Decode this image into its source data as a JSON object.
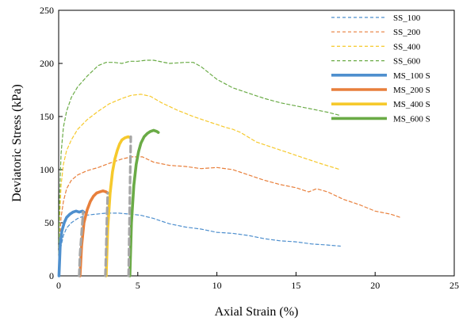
{
  "chart_data": {
    "type": "line",
    "xlabel": "Axial Strain (%)",
    "ylabel": "Deviatoric Stress (kPa)",
    "xlim": [
      0,
      25
    ],
    "ylim": [
      0,
      250
    ],
    "x_ticks": [
      0,
      5,
      10,
      15,
      20,
      25
    ],
    "y_ticks": [
      0,
      50,
      100,
      150,
      200,
      250
    ],
    "legend_position": "top-right",
    "grid": false,
    "series": [
      {
        "name": "SS_100",
        "color": "#4e8fce",
        "style": "dashed",
        "x": [
          0,
          0.05,
          0.15,
          0.3,
          0.5,
          0.8,
          1.2,
          1.7,
          2.3,
          3.0,
          3.8,
          4.6,
          5.2,
          6.0,
          7.0,
          8.0,
          9.0,
          10.0,
          11.0,
          12.0,
          13.0,
          14.0,
          15.0,
          16.0,
          17.0,
          17.8
        ],
        "y": [
          0,
          15,
          28,
          38,
          45,
          50,
          54,
          57,
          58,
          59,
          59,
          58,
          57,
          54,
          49,
          46,
          44,
          41,
          40,
          38,
          35,
          33,
          32,
          30,
          29,
          28
        ]
      },
      {
        "name": "SS_200",
        "color": "#e87f3b",
        "style": "dashed",
        "x": [
          0,
          0.05,
          0.15,
          0.3,
          0.5,
          0.8,
          1.2,
          1.8,
          2.5,
          3.2,
          4.0,
          4.6,
          5.3,
          6.0,
          7.0,
          8.0,
          9.0,
          10.0,
          11.0,
          12.0,
          13.0,
          14.0,
          15.0,
          15.8,
          16.3,
          17.0,
          18.0,
          19.0,
          20.0,
          21.0,
          21.6
        ],
        "y": [
          0,
          30,
          55,
          70,
          82,
          90,
          95,
          99,
          102,
          106,
          110,
          112,
          112,
          107,
          104,
          103,
          101,
          102,
          100,
          95,
          90,
          86,
          83,
          79,
          82,
          79,
          72,
          67,
          61,
          58,
          55
        ]
      },
      {
        "name": "SS_400",
        "color": "#f6c92c",
        "style": "dashed",
        "x": [
          0,
          0.05,
          0.15,
          0.3,
          0.5,
          0.8,
          1.2,
          1.8,
          2.5,
          3.2,
          4.0,
          4.6,
          5.2,
          5.8,
          6.5,
          7.5,
          8.5,
          9.5,
          10.5,
          11.0,
          11.5,
          12.5,
          13.5,
          14.5,
          15.5,
          16.5,
          17.8
        ],
        "y": [
          0,
          50,
          85,
          105,
          118,
          128,
          138,
          147,
          155,
          162,
          167,
          170,
          171,
          169,
          163,
          156,
          150,
          145,
          140,
          138,
          135,
          126,
          121,
          116,
          111,
          106,
          100
        ]
      },
      {
        "name": "SS_600",
        "color": "#6aab46",
        "style": "dashed",
        "x": [
          0,
          0.05,
          0.15,
          0.3,
          0.5,
          0.8,
          1.2,
          1.8,
          2.5,
          3.0,
          3.5,
          4.0,
          4.5,
          5.0,
          5.5,
          6.0,
          7.0,
          8.0,
          8.5,
          9.0,
          10.0,
          11.0,
          12.0,
          13.0,
          14.0,
          15.0,
          16.0,
          17.0,
          17.8
        ],
        "y": [
          0,
          70,
          115,
          140,
          155,
          168,
          178,
          188,
          198,
          201,
          201,
          200,
          202,
          202,
          203,
          203,
          200,
          201,
          201,
          197,
          185,
          177,
          172,
          167,
          163,
          160,
          157,
          154,
          151
        ]
      },
      {
        "name": "MS_100 S",
        "color": "#4e8fce",
        "style": "solid",
        "x": [
          0.02,
          0.1,
          0.2,
          0.35,
          0.5,
          0.7,
          0.9,
          1.1,
          1.3,
          1.5,
          1.6
        ],
        "y": [
          0,
          30,
          42,
          50,
          55,
          58,
          60,
          61,
          60,
          61,
          60
        ]
      },
      {
        "name": "MS_200 S",
        "color": "#e87f3b",
        "style": "solid",
        "x": [
          1.35,
          1.45,
          1.6,
          1.8,
          2.0,
          2.2,
          2.4,
          2.6,
          2.8,
          3.0,
          3.1
        ],
        "y": [
          0,
          28,
          50,
          62,
          70,
          75,
          78,
          79,
          80,
          79,
          78
        ]
      },
      {
        "name": "MS_400 S",
        "color": "#f6c92c",
        "style": "solid",
        "x": [
          3.0,
          3.1,
          3.25,
          3.4,
          3.55,
          3.7,
          3.85,
          4.0,
          4.2,
          4.4,
          4.55
        ],
        "y": [
          0,
          45,
          78,
          98,
          110,
          118,
          124,
          128,
          130,
          131,
          130
        ]
      },
      {
        "name": "MS_600 S",
        "color": "#6aab46",
        "style": "solid",
        "x": [
          4.5,
          4.6,
          4.75,
          4.9,
          5.05,
          5.2,
          5.4,
          5.6,
          5.8,
          6.0,
          6.2,
          6.3
        ],
        "y": [
          0,
          50,
          85,
          105,
          117,
          125,
          131,
          134,
          136,
          137,
          136,
          135
        ]
      },
      {
        "name": "",
        "color": "#a6a6a6",
        "style": "dashed-gray",
        "x": [
          1.3,
          1.35,
          1.45,
          1.55
        ],
        "y": [
          0,
          20,
          40,
          60
        ]
      },
      {
        "name": "",
        "color": "#a6a6a6",
        "style": "dashed-gray",
        "x": [
          2.95,
          3.0,
          3.05,
          3.1
        ],
        "y": [
          0,
          25,
          55,
          78
        ]
      },
      {
        "name": "",
        "color": "#a6a6a6",
        "style": "dashed-gray",
        "x": [
          4.42,
          4.47,
          4.52,
          4.56
        ],
        "y": [
          0,
          45,
          95,
          131
        ]
      }
    ]
  }
}
